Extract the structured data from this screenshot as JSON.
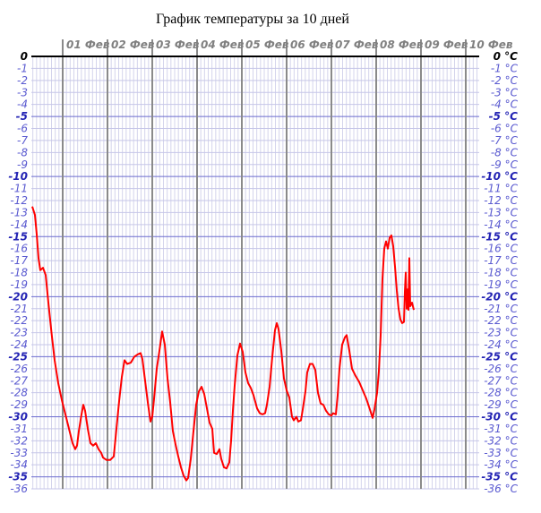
{
  "chart_data": {
    "type": "line",
    "title": "График температуры за 10 дней",
    "xlabel": "",
    "ylabel": "",
    "y_unit": "°C",
    "ylim": [
      -36,
      0
    ],
    "x_day_labels": [
      "01 Фев",
      "02 Фев",
      "03 Фев",
      "04 Фев",
      "05 Фев",
      "06 Фев",
      "07 Фев",
      "08 Фев",
      "09 Фев",
      "10 Фев"
    ],
    "x_range_days": [
      -0.7,
      9.3
    ],
    "y_ticks_left": [
      "0",
      "-1",
      "-2",
      "-3",
      "-4",
      "-5",
      "-6",
      "-7",
      "-8",
      "-9",
      "-10",
      "-11",
      "-12",
      "-13",
      "-14",
      "-15",
      "-16",
      "-17",
      "-18",
      "-19",
      "-20",
      "-21",
      "-22",
      "-23",
      "-24",
      "-25",
      "-26",
      "-27",
      "-28",
      "-29",
      "-30",
      "-31",
      "-32",
      "-33",
      "-34",
      "-35",
      "-36"
    ],
    "y_ticks_right": [
      "0 °C",
      "-1 °C",
      "-2 °C",
      "-3 °C",
      "-4 °C",
      "-5 °C",
      "-6 °C",
      "-7 °C",
      "-8 °C",
      "-9 °C",
      "-10 °C",
      "-11 °C",
      "-12 °C",
      "-13 °C",
      "-14 °C",
      "-15 °C",
      "-16 °C",
      "-17 °C",
      "-18 °C",
      "-19 °C",
      "-20 °C",
      "-21 °C",
      "-22 °C",
      "-23 °C",
      "-24 °C",
      "-25 °C",
      "-26 °C",
      "-27 °C",
      "-28 °C",
      "-29 °C",
      "-30 °C",
      "-31 °C",
      "-32 °C",
      "-33 °C",
      "-34 °C",
      "-35 °C",
      "-36 °C"
    ],
    "grid": true,
    "legend": "none",
    "series": [
      {
        "color": "#ff0000",
        "points": [
          [
            -0.68,
            -12.5
          ],
          [
            -0.62,
            -13.2
          ],
          [
            -0.58,
            -14.8
          ],
          [
            -0.54,
            -16.8
          ],
          [
            -0.5,
            -17.8
          ],
          [
            -0.44,
            -17.6
          ],
          [
            -0.38,
            -18.2
          ],
          [
            -0.32,
            -20.5
          ],
          [
            -0.25,
            -23.0
          ],
          [
            -0.18,
            -25.3
          ],
          [
            -0.1,
            -27.2
          ],
          [
            -0.02,
            -28.6
          ],
          [
            0.06,
            -29.8
          ],
          [
            0.14,
            -31.0
          ],
          [
            0.22,
            -32.2
          ],
          [
            0.28,
            -32.7
          ],
          [
            0.32,
            -32.4
          ],
          [
            0.36,
            -31.2
          ],
          [
            0.42,
            -29.8
          ],
          [
            0.46,
            -29.0
          ],
          [
            0.5,
            -29.5
          ],
          [
            0.56,
            -31.0
          ],
          [
            0.62,
            -32.2
          ],
          [
            0.68,
            -32.4
          ],
          [
            0.74,
            -32.2
          ],
          [
            0.8,
            -32.7
          ],
          [
            0.86,
            -33.0
          ],
          [
            0.9,
            -33.4
          ],
          [
            0.98,
            -33.6
          ],
          [
            1.06,
            -33.6
          ],
          [
            1.14,
            -33.3
          ],
          [
            1.2,
            -31.0
          ],
          [
            1.26,
            -28.7
          ],
          [
            1.32,
            -26.7
          ],
          [
            1.38,
            -25.3
          ],
          [
            1.44,
            -25.6
          ],
          [
            1.52,
            -25.5
          ],
          [
            1.6,
            -25.0
          ],
          [
            1.68,
            -24.8
          ],
          [
            1.74,
            -24.7
          ],
          [
            1.78,
            -25.2
          ],
          [
            1.84,
            -27.0
          ],
          [
            1.9,
            -28.8
          ],
          [
            1.96,
            -30.4
          ],
          [
            2.0,
            -30.0
          ],
          [
            2.04,
            -28.5
          ],
          [
            2.1,
            -26.0
          ],
          [
            2.16,
            -24.5
          ],
          [
            2.22,
            -22.9
          ],
          [
            2.28,
            -24.0
          ],
          [
            2.34,
            -26.8
          ],
          [
            2.4,
            -28.8
          ],
          [
            2.46,
            -31.2
          ],
          [
            2.52,
            -32.3
          ],
          [
            2.58,
            -33.3
          ],
          [
            2.64,
            -34.2
          ],
          [
            2.7,
            -34.9
          ],
          [
            2.76,
            -35.3
          ],
          [
            2.8,
            -35.1
          ],
          [
            2.86,
            -33.5
          ],
          [
            2.92,
            -31.2
          ],
          [
            2.98,
            -29.0
          ],
          [
            3.04,
            -27.9
          ],
          [
            3.1,
            -27.5
          ],
          [
            3.16,
            -28.1
          ],
          [
            3.22,
            -29.3
          ],
          [
            3.28,
            -30.5
          ],
          [
            3.34,
            -31.0
          ],
          [
            3.38,
            -33.0
          ],
          [
            3.44,
            -33.1
          ],
          [
            3.5,
            -32.7
          ],
          [
            3.54,
            -33.5
          ],
          [
            3.6,
            -34.2
          ],
          [
            3.66,
            -34.3
          ],
          [
            3.72,
            -33.8
          ],
          [
            3.76,
            -32.0
          ],
          [
            3.8,
            -29.5
          ],
          [
            3.84,
            -27.4
          ],
          [
            3.9,
            -24.9
          ],
          [
            3.96,
            -23.9
          ],
          [
            4.02,
            -24.6
          ],
          [
            4.08,
            -26.3
          ],
          [
            4.14,
            -27.2
          ],
          [
            4.2,
            -27.6
          ],
          [
            4.26,
            -28.2
          ],
          [
            4.34,
            -29.3
          ],
          [
            4.4,
            -29.7
          ],
          [
            4.46,
            -29.8
          ],
          [
            4.52,
            -29.7
          ],
          [
            4.56,
            -29.0
          ],
          [
            4.62,
            -27.5
          ],
          [
            4.68,
            -25.0
          ],
          [
            4.74,
            -22.8
          ],
          [
            4.78,
            -22.2
          ],
          [
            4.82,
            -22.7
          ],
          [
            4.88,
            -24.5
          ],
          [
            4.94,
            -26.8
          ],
          [
            5.0,
            -27.8
          ],
          [
            5.06,
            -28.4
          ],
          [
            5.12,
            -30.0
          ],
          [
            5.16,
            -30.3
          ],
          [
            5.22,
            -30.0
          ],
          [
            5.26,
            -30.4
          ],
          [
            5.32,
            -30.3
          ],
          [
            5.36,
            -29.4
          ],
          [
            5.42,
            -27.9
          ],
          [
            5.46,
            -26.3
          ],
          [
            5.52,
            -25.6
          ],
          [
            5.58,
            -25.6
          ],
          [
            5.64,
            -26.1
          ],
          [
            5.7,
            -28.0
          ],
          [
            5.76,
            -28.9
          ],
          [
            5.82,
            -29.0
          ],
          [
            5.88,
            -29.5
          ],
          [
            5.94,
            -29.8
          ],
          [
            6.0,
            -29.9
          ],
          [
            6.04,
            -29.7
          ],
          [
            6.1,
            -29.8
          ],
          [
            6.14,
            -28.2
          ],
          [
            6.18,
            -26.0
          ],
          [
            6.24,
            -24.0
          ],
          [
            6.3,
            -23.4
          ],
          [
            6.34,
            -23.2
          ],
          [
            6.4,
            -24.5
          ],
          [
            6.46,
            -26.0
          ],
          [
            6.54,
            -26.6
          ],
          [
            6.62,
            -27.1
          ],
          [
            6.7,
            -27.8
          ],
          [
            6.78,
            -28.5
          ],
          [
            6.86,
            -29.4
          ],
          [
            6.92,
            -30.1
          ],
          [
            6.96,
            -29.4
          ],
          [
            7.02,
            -28.0
          ],
          [
            7.06,
            -26.2
          ],
          [
            7.1,
            -23.2
          ],
          [
            7.14,
            -18.5
          ],
          [
            7.18,
            -16.0
          ],
          [
            7.22,
            -15.4
          ],
          [
            7.26,
            -16.0
          ],
          [
            7.3,
            -15.1
          ],
          [
            7.34,
            -14.9
          ],
          [
            7.38,
            -15.8
          ],
          [
            7.42,
            -17.5
          ],
          [
            7.46,
            -19.5
          ],
          [
            7.5,
            -21.0
          ],
          [
            7.54,
            -21.9
          ],
          [
            7.58,
            -22.2
          ],
          [
            7.62,
            -22.1
          ],
          [
            7.64,
            -19.6
          ],
          [
            7.66,
            -18.0
          ],
          [
            7.68,
            -21.0
          ],
          [
            7.7,
            -19.4
          ],
          [
            7.72,
            -21.1
          ],
          [
            7.74,
            -16.8
          ],
          [
            7.76,
            -20.8
          ],
          [
            7.8,
            -20.5
          ],
          [
            7.84,
            -21.1
          ]
        ]
      }
    ]
  }
}
